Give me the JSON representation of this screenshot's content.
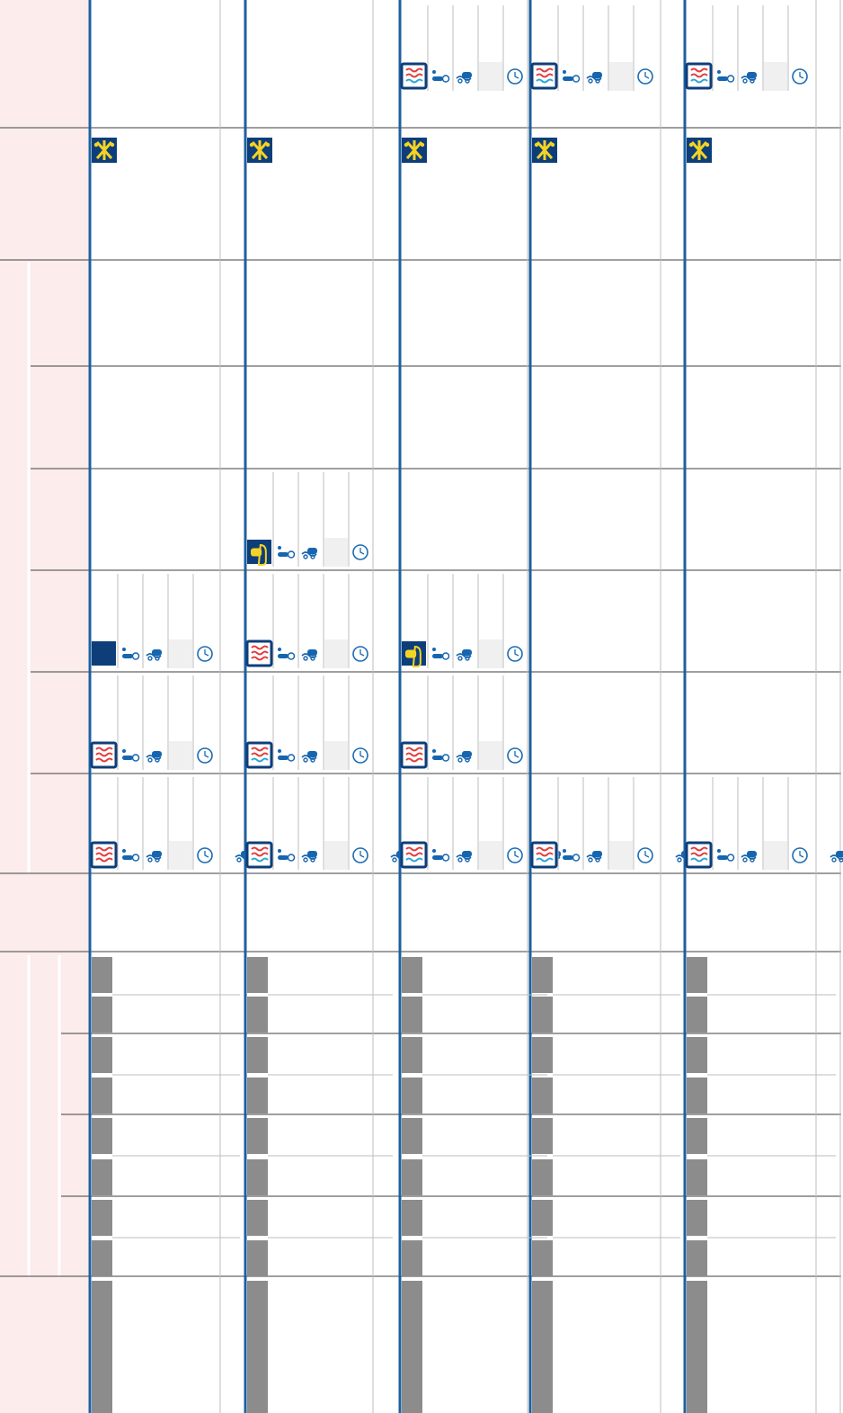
{
  "colors": {
    "label_fill": "#fdecec",
    "grid_line": "#3f3f3f",
    "thin_line": "#bdbdbd",
    "col_divider": "#1f5f9e",
    "icon_dark": "#0d3e7a",
    "icon_blue": "#1565b0",
    "icon_red": "#e43b3b",
    "icon_cyan": "#2aa7d6",
    "icon_yellow": "#f5d324",
    "input_gray": "#f0f0f0",
    "marker_gray": "#8c8c8c",
    "clock_blue": "#1b6bb3"
  },
  "icons": {
    "mode_ice": "ice-pack-icon",
    "mode_hot_cold": "hot-cold-wave-icon",
    "mode_heat": "heat-wave-icon",
    "mode_massage": "massage-device-icon",
    "mode_blank": "blank-device-icon",
    "temperature": "thermometer-icon",
    "compression": "cuff-icon",
    "timer": "clock-icon"
  },
  "columns": [
    {
      "id": "c1",
      "sections": {
        "top": null,
        "cold": "mode_ice",
        "stages": [
          null,
          null,
          null,
          {
            "mode": "mode_blank"
          },
          {
            "mode": "mode_heat"
          },
          {
            "mode": "mode_heat",
            "extra": true
          }
        ],
        "notes": [
          true,
          true,
          true,
          true,
          true,
          true,
          true,
          true
        ],
        "long_marker": true
      }
    },
    {
      "id": "c2",
      "sections": {
        "top": null,
        "cold": "mode_ice",
        "stages": [
          null,
          null,
          {
            "mode": "mode_massage"
          },
          {
            "mode": "mode_heat"
          },
          {
            "mode": "mode_hot_cold"
          },
          {
            "mode": "mode_hot_cold",
            "extra": true
          }
        ],
        "notes": [
          true,
          true,
          true,
          true,
          true,
          true,
          true,
          true
        ],
        "long_marker": true
      }
    },
    {
      "id": "c3",
      "sections": {
        "top": {
          "mode": "mode_hot_cold"
        },
        "cold": "mode_ice",
        "stages": [
          null,
          null,
          null,
          {
            "mode": "mode_massage"
          },
          {
            "mode": "mode_heat"
          },
          {
            "mode": "mode_hot_cold",
            "extra": true
          }
        ],
        "notes": [
          true,
          true,
          true,
          true,
          true,
          true,
          true,
          true
        ],
        "long_marker": true
      }
    },
    {
      "id": "c4",
      "sections": {
        "top": {
          "mode": "mode_hot_cold"
        },
        "cold": "mode_ice",
        "stages": [
          null,
          null,
          null,
          null,
          null,
          {
            "mode": "mode_hot_cold",
            "extra": true
          }
        ],
        "notes": [
          true,
          true,
          true,
          true,
          true,
          true,
          true,
          true
        ],
        "long_marker": true
      }
    },
    {
      "id": "c5",
      "sections": {
        "top": {
          "mode": "mode_hot_cold"
        },
        "cold": "mode_ice",
        "stages": [
          null,
          null,
          null,
          null,
          null,
          {
            "mode": "mode_hot_cold",
            "extra": true
          }
        ],
        "notes": [
          true,
          true,
          true,
          true,
          true,
          true,
          true,
          true
        ],
        "long_marker": true
      }
    }
  ]
}
